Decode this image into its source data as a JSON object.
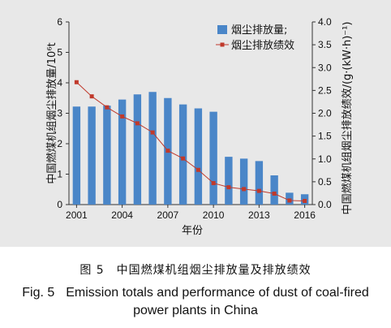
{
  "chart_data": {
    "type": "bar",
    "categories": [
      "2001",
      "2002",
      "2003",
      "2004",
      "2005",
      "2006",
      "2007",
      "2008",
      "2009",
      "2010",
      "2011",
      "2012",
      "2013",
      "2014",
      "2015",
      "2016"
    ],
    "x_tick_labels": [
      "2001",
      "2004",
      "2007",
      "2010",
      "2013",
      "2016"
    ],
    "xlabel": "年份",
    "ylabel": "中国燃煤机组烟尘排放量/10⁶t",
    "y2label": "中国燃煤机组烟尘排放绩效/(g·(kW·h)⁻¹)",
    "ylim": [
      0,
      6
    ],
    "y_ticks": [
      "0",
      "1",
      "2",
      "3",
      "4",
      "5",
      "6"
    ],
    "y2lim": [
      0,
      4.0
    ],
    "y2_ticks": [
      "0.0",
      "0.5",
      "1.0",
      "1.5",
      "2.0",
      "2.5",
      "3.0",
      "3.5",
      "4.0"
    ],
    "grid": false,
    "legend_position": "top-right",
    "series": [
      {
        "name": "烟尘排放量;",
        "type": "bar",
        "axis": "left",
        "color": "#4a86c8",
        "values": [
          3.22,
          3.22,
          3.25,
          3.45,
          3.62,
          3.7,
          3.5,
          3.29,
          3.16,
          3.05,
          1.57,
          1.51,
          1.43,
          0.96,
          0.39,
          0.34
        ]
      },
      {
        "name": "烟尘排放绩效",
        "type": "line",
        "axis": "right",
        "color": "#c0392b",
        "values": [
          2.68,
          2.37,
          2.13,
          1.93,
          1.78,
          1.58,
          1.18,
          1.01,
          0.76,
          0.47,
          0.38,
          0.34,
          0.3,
          0.24,
          0.09,
          0.08
        ]
      }
    ]
  },
  "caption": {
    "cn": "图 5　中国燃煤机组烟尘排放量及排放绩效",
    "en_label": "Fig. 5",
    "en_text": "Emission totals and performance of dust of coal-fired power plants in China"
  }
}
